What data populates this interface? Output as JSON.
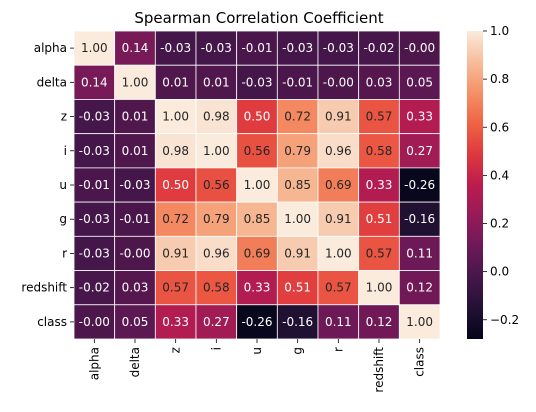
{
  "chart_data": {
    "type": "heatmap",
    "title": "Spearman Correlation Coefficient",
    "row_labels": [
      "alpha",
      "delta",
      "z",
      "i",
      "u",
      "g",
      "r",
      "redshift",
      "class"
    ],
    "col_labels": [
      "alpha",
      "delta",
      "z",
      "i",
      "u",
      "g",
      "r",
      "redshift",
      "class"
    ],
    "values": [
      [
        1.0,
        0.14,
        -0.03,
        -0.03,
        -0.01,
        -0.03,
        -0.03,
        -0.02,
        -0.0
      ],
      [
        0.14,
        1.0,
        0.01,
        0.01,
        -0.03,
        -0.01,
        -0.0,
        0.03,
        0.05
      ],
      [
        -0.03,
        0.01,
        1.0,
        0.98,
        0.5,
        0.72,
        0.91,
        0.57,
        0.33
      ],
      [
        -0.03,
        0.01,
        0.98,
        1.0,
        0.56,
        0.79,
        0.96,
        0.58,
        0.27
      ],
      [
        -0.01,
        -0.03,
        0.5,
        0.56,
        1.0,
        0.85,
        0.69,
        0.33,
        -0.26
      ],
      [
        -0.03,
        -0.01,
        0.72,
        0.79,
        0.85,
        1.0,
        0.91,
        0.51,
        -0.16
      ],
      [
        -0.03,
        -0.0,
        0.91,
        0.96,
        0.69,
        0.91,
        1.0,
        0.57,
        0.11
      ],
      [
        -0.02,
        0.03,
        0.57,
        0.58,
        0.33,
        0.51,
        0.57,
        1.0,
        0.12
      ],
      [
        -0.0,
        0.05,
        0.33,
        0.27,
        -0.26,
        -0.16,
        0.11,
        0.12,
        1.0
      ]
    ],
    "value_labels": [
      [
        "1.00",
        "0.14",
        "-0.03",
        "-0.03",
        "-0.01",
        "-0.03",
        "-0.03",
        "-0.02",
        "-0.00"
      ],
      [
        "0.14",
        "1.00",
        "0.01",
        "0.01",
        "-0.03",
        "-0.01",
        "-0.00",
        "0.03",
        "0.05"
      ],
      [
        "-0.03",
        "0.01",
        "1.00",
        "0.98",
        "0.50",
        "0.72",
        "0.91",
        "0.57",
        "0.33"
      ],
      [
        "-0.03",
        "0.01",
        "0.98",
        "1.00",
        "0.56",
        "0.79",
        "0.96",
        "0.58",
        "0.27"
      ],
      [
        "-0.01",
        "-0.03",
        "0.50",
        "0.56",
        "1.00",
        "0.85",
        "0.69",
        "0.33",
        "-0.26"
      ],
      [
        "-0.03",
        "-0.01",
        "0.72",
        "0.79",
        "0.85",
        "1.00",
        "0.91",
        "0.51",
        "-0.16"
      ],
      [
        "-0.03",
        "-0.00",
        "0.91",
        "0.96",
        "0.69",
        "0.91",
        "1.00",
        "0.57",
        "0.11"
      ],
      [
        "-0.02",
        "0.03",
        "0.57",
        "0.58",
        "0.33",
        "0.51",
        "0.57",
        "1.00",
        "0.12"
      ],
      [
        "-0.00",
        "0.05",
        "0.33",
        "0.27",
        "-0.26",
        "-0.16",
        "0.11",
        "0.12",
        "1.00"
      ]
    ],
    "colorscale": "rocket",
    "vmin": -0.28,
    "vmax": 1.0,
    "colorbar_ticks": [
      1.0,
      0.8,
      0.6,
      0.4,
      0.2,
      0.0,
      -0.2
    ],
    "colorbar_tick_labels": [
      "1.0",
      "0.8",
      "0.6",
      "0.4",
      "0.2",
      "0.0",
      "−0.2"
    ],
    "cell_border_color": "#ffffff",
    "grid": false
  }
}
